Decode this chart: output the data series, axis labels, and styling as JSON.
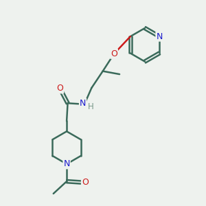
{
  "bg_color": "#eef2ee",
  "bond_color": "#3a6a5a",
  "N_color": "#1a1acc",
  "O_color": "#cc1a1a",
  "H_color": "#7a9a8a",
  "line_width": 1.8,
  "figsize": [
    3.0,
    3.0
  ],
  "dpi": 100,
  "xlim": [
    0,
    10
  ],
  "ylim": [
    0,
    10
  ]
}
